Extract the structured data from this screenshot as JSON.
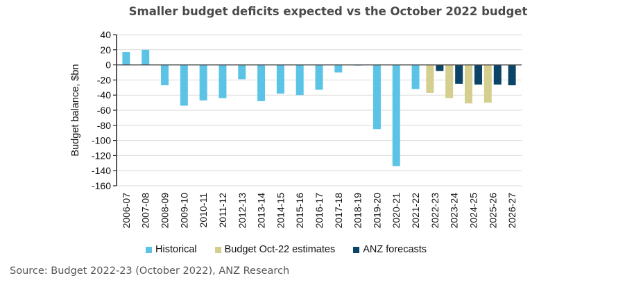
{
  "chart_data": {
    "type": "bar",
    "title": "Smaller budget deficits expected vs the October 2022 budget",
    "xlabel": "",
    "ylabel": "Budget balance, $bn",
    "ylim": [
      -160,
      40
    ],
    "yticks": [
      40,
      20,
      0,
      -20,
      -40,
      -60,
      -80,
      -100,
      -120,
      -140,
      -160
    ],
    "grid": true,
    "legend_position": "bottom",
    "categories": [
      "2006-07",
      "2007-08",
      "2008-09",
      "2009-10",
      "2010-11",
      "2011-12",
      "2012-13",
      "2013-14",
      "2014-15",
      "2015-16",
      "2016-17",
      "2017-18",
      "2018-19",
      "2019-20",
      "2020-21",
      "2021-22",
      "2022-23",
      "2023-24",
      "2024-25",
      "2025-26",
      "2026-27"
    ],
    "series": [
      {
        "name": "Historical",
        "color": "#5BC4E6",
        "values": [
          17,
          20,
          -27,
          -54,
          -47,
          -44,
          -19,
          -48,
          -38,
          -40,
          -33,
          -10,
          -1,
          -85,
          -134,
          -32,
          null,
          null,
          null,
          null,
          null
        ]
      },
      {
        "name": "Budget Oct-22 estimates",
        "color": "#D4CF8E",
        "values": [
          null,
          null,
          null,
          null,
          null,
          null,
          null,
          null,
          null,
          null,
          null,
          null,
          null,
          null,
          null,
          null,
          -37,
          -44,
          -51,
          -50,
          null
        ]
      },
      {
        "name": "ANZ forecasts",
        "color": "#0B4466",
        "values": [
          null,
          null,
          null,
          null,
          null,
          null,
          null,
          null,
          null,
          null,
          null,
          null,
          null,
          null,
          null,
          null,
          -8,
          -25,
          -26,
          -26,
          -27
        ]
      }
    ]
  },
  "source": "Source: Budget 2022-23 (October 2022), ANZ Research"
}
